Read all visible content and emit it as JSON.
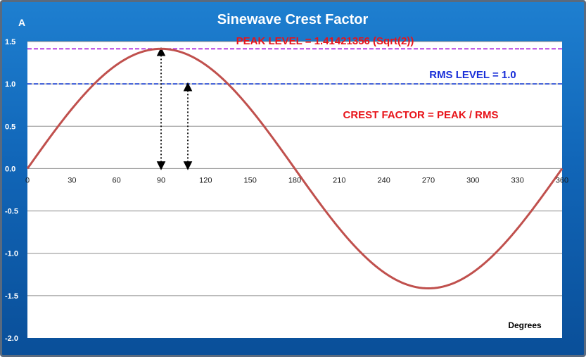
{
  "chart_data": {
    "type": "line",
    "title": "Sinewave Crest Factor",
    "ylabel": "A",
    "xlabel": "Degrees",
    "xlim": [
      0,
      360
    ],
    "ylim": [
      -2.0,
      1.5
    ],
    "x_ticks": [
      "0",
      "30",
      "60",
      "90",
      "120",
      "150",
      "180",
      "210",
      "240",
      "270",
      "300",
      "330",
      "360"
    ],
    "x_tick_values": [
      0,
      30,
      60,
      90,
      120,
      150,
      180,
      210,
      240,
      270,
      300,
      330,
      360
    ],
    "y_ticks": [
      "1.5",
      "1.0",
      "0.5",
      "0.0",
      "-0.5",
      "-1.0",
      "-1.5",
      "-2.0"
    ],
    "y_tick_values": [
      1.5,
      1.0,
      0.5,
      0.0,
      -0.5,
      -1.0,
      -1.5,
      -2.0
    ],
    "grid": true,
    "series": [
      {
        "name": "Sinewave",
        "function": "1.41421356 * sin(x degrees)",
        "amplitude": 1.41421356,
        "sample_step_degrees": 2,
        "color": "#c0504d"
      }
    ],
    "reference_lines": [
      {
        "name": "peak",
        "value": 1.41421356,
        "color": "#b030e0"
      },
      {
        "name": "rms",
        "value": 1.0,
        "color": "#1a3fd0"
      }
    ],
    "arrows": [
      {
        "name": "peak-arrow",
        "x": 90,
        "from": 0,
        "to": 1.41421356
      },
      {
        "name": "rms-arrow",
        "x": 108,
        "from": 0,
        "to": 1.0
      }
    ],
    "annotations": {
      "peak": "PEAK LEVEL = 1.41421356 (Sqrt(2))",
      "rms": "RMS LEVEL = 1.0",
      "crest": "CREST FACTOR = PEAK / RMS"
    }
  }
}
